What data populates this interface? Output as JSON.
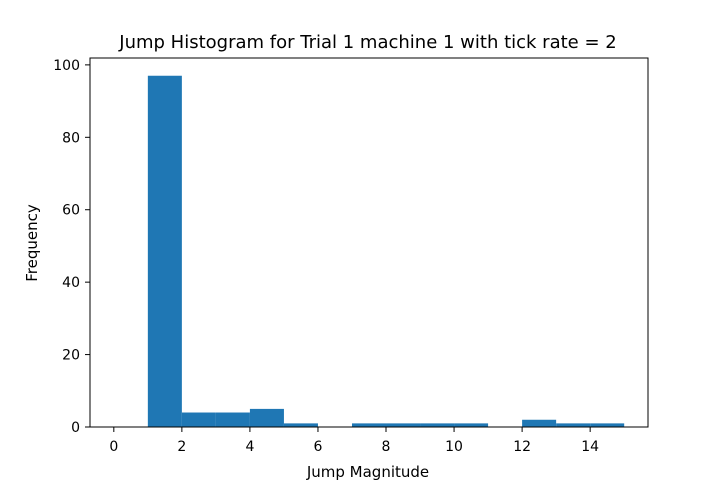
{
  "chart_data": {
    "type": "bar",
    "title": "Jump Histogram for Trial 1 machine 1 with tick rate = 2",
    "xlabel": "Jump Magnitude",
    "ylabel": "Frequency",
    "xlim": [
      -0.7,
      15.7
    ],
    "ylim": [
      0,
      101.9
    ],
    "xticks": [
      0,
      2,
      4,
      6,
      8,
      10,
      12,
      14
    ],
    "yticks": [
      0,
      20,
      40,
      60,
      80,
      100
    ],
    "bar_color": "#1f77b4",
    "grid": false,
    "bins": [
      {
        "x0": 0,
        "x1": 1,
        "value": 0
      },
      {
        "x0": 1,
        "x1": 2,
        "value": 97
      },
      {
        "x0": 2,
        "x1": 3,
        "value": 4
      },
      {
        "x0": 3,
        "x1": 4,
        "value": 4
      },
      {
        "x0": 4,
        "x1": 5,
        "value": 5
      },
      {
        "x0": 5,
        "x1": 6,
        "value": 1
      },
      {
        "x0": 6,
        "x1": 7,
        "value": 0
      },
      {
        "x0": 7,
        "x1": 8,
        "value": 1
      },
      {
        "x0": 8,
        "x1": 9,
        "value": 1
      },
      {
        "x0": 9,
        "x1": 10,
        "value": 1
      },
      {
        "x0": 10,
        "x1": 11,
        "value": 1
      },
      {
        "x0": 11,
        "x1": 12,
        "value": 0
      },
      {
        "x0": 12,
        "x1": 13,
        "value": 2
      },
      {
        "x0": 13,
        "x1": 14,
        "value": 1
      },
      {
        "x0": 14,
        "x1": 15,
        "value": 1
      }
    ]
  }
}
